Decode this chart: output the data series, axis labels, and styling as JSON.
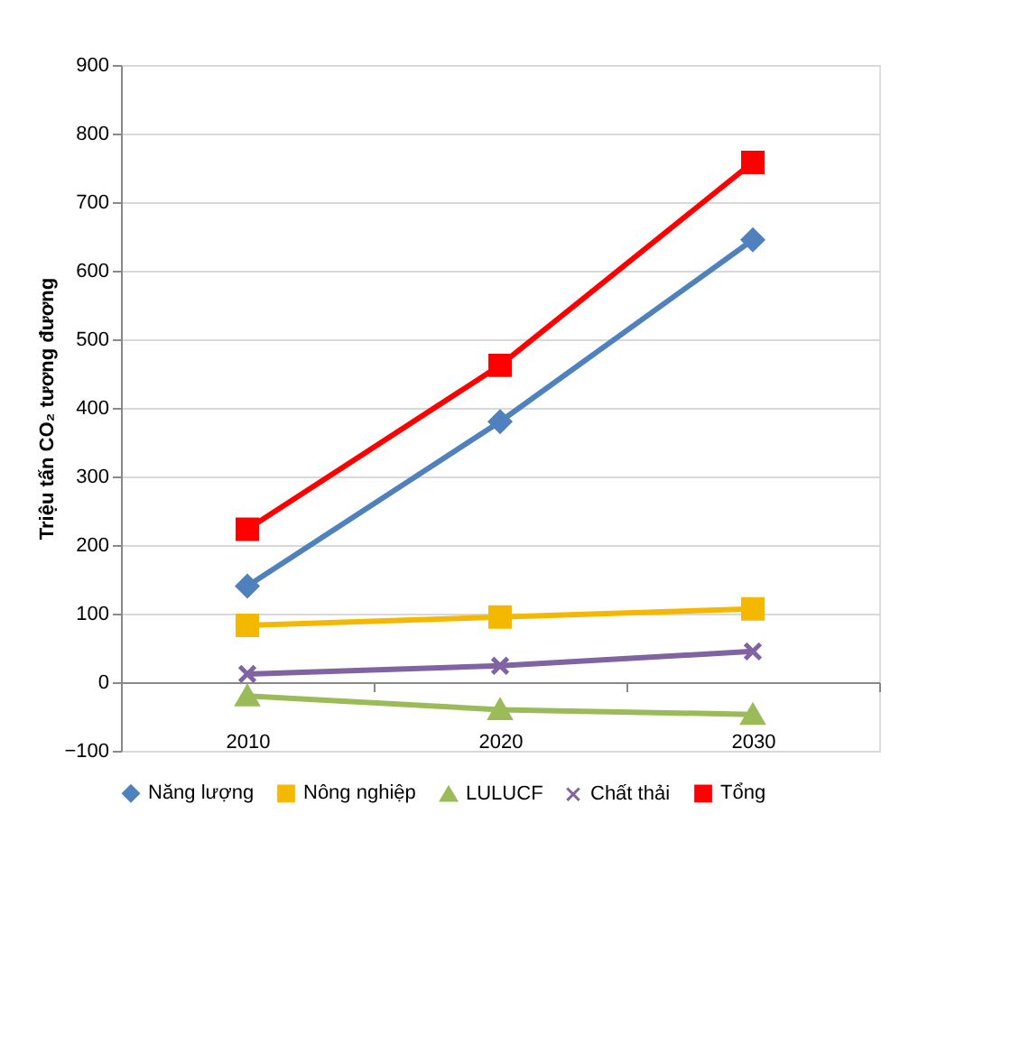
{
  "chart_data": {
    "type": "line",
    "ylabel": "Triệu tấn CO₂ tương đương",
    "categories": [
      "2010",
      "2020",
      "2030"
    ],
    "series": [
      {
        "name": "Năng lượng",
        "color": "#4f81bd",
        "marker": "diamond",
        "values": [
          140,
          380,
          645
        ]
      },
      {
        "name": "Nông nghiệp",
        "color": "#f5b800",
        "marker": "square",
        "values": [
          83,
          95,
          107
        ]
      },
      {
        "name": "LULUCF",
        "color": "#9bbb59",
        "marker": "triangle",
        "values": [
          -20,
          -40,
          -47
        ]
      },
      {
        "name": "Chất thải",
        "color": "#8064a2",
        "marker": "cross",
        "values": [
          12,
          24,
          45
        ]
      },
      {
        "name": "Tổng",
        "color": "#ff0000",
        "marker": "square",
        "values": [
          223,
          462,
          758
        ]
      }
    ],
    "ylim": [
      -100,
      900
    ],
    "yticks": [
      -100,
      0,
      100,
      200,
      300,
      400,
      500,
      600,
      700,
      800,
      900
    ],
    "grid": "y",
    "legend": "bottom",
    "line_style": "solid"
  }
}
